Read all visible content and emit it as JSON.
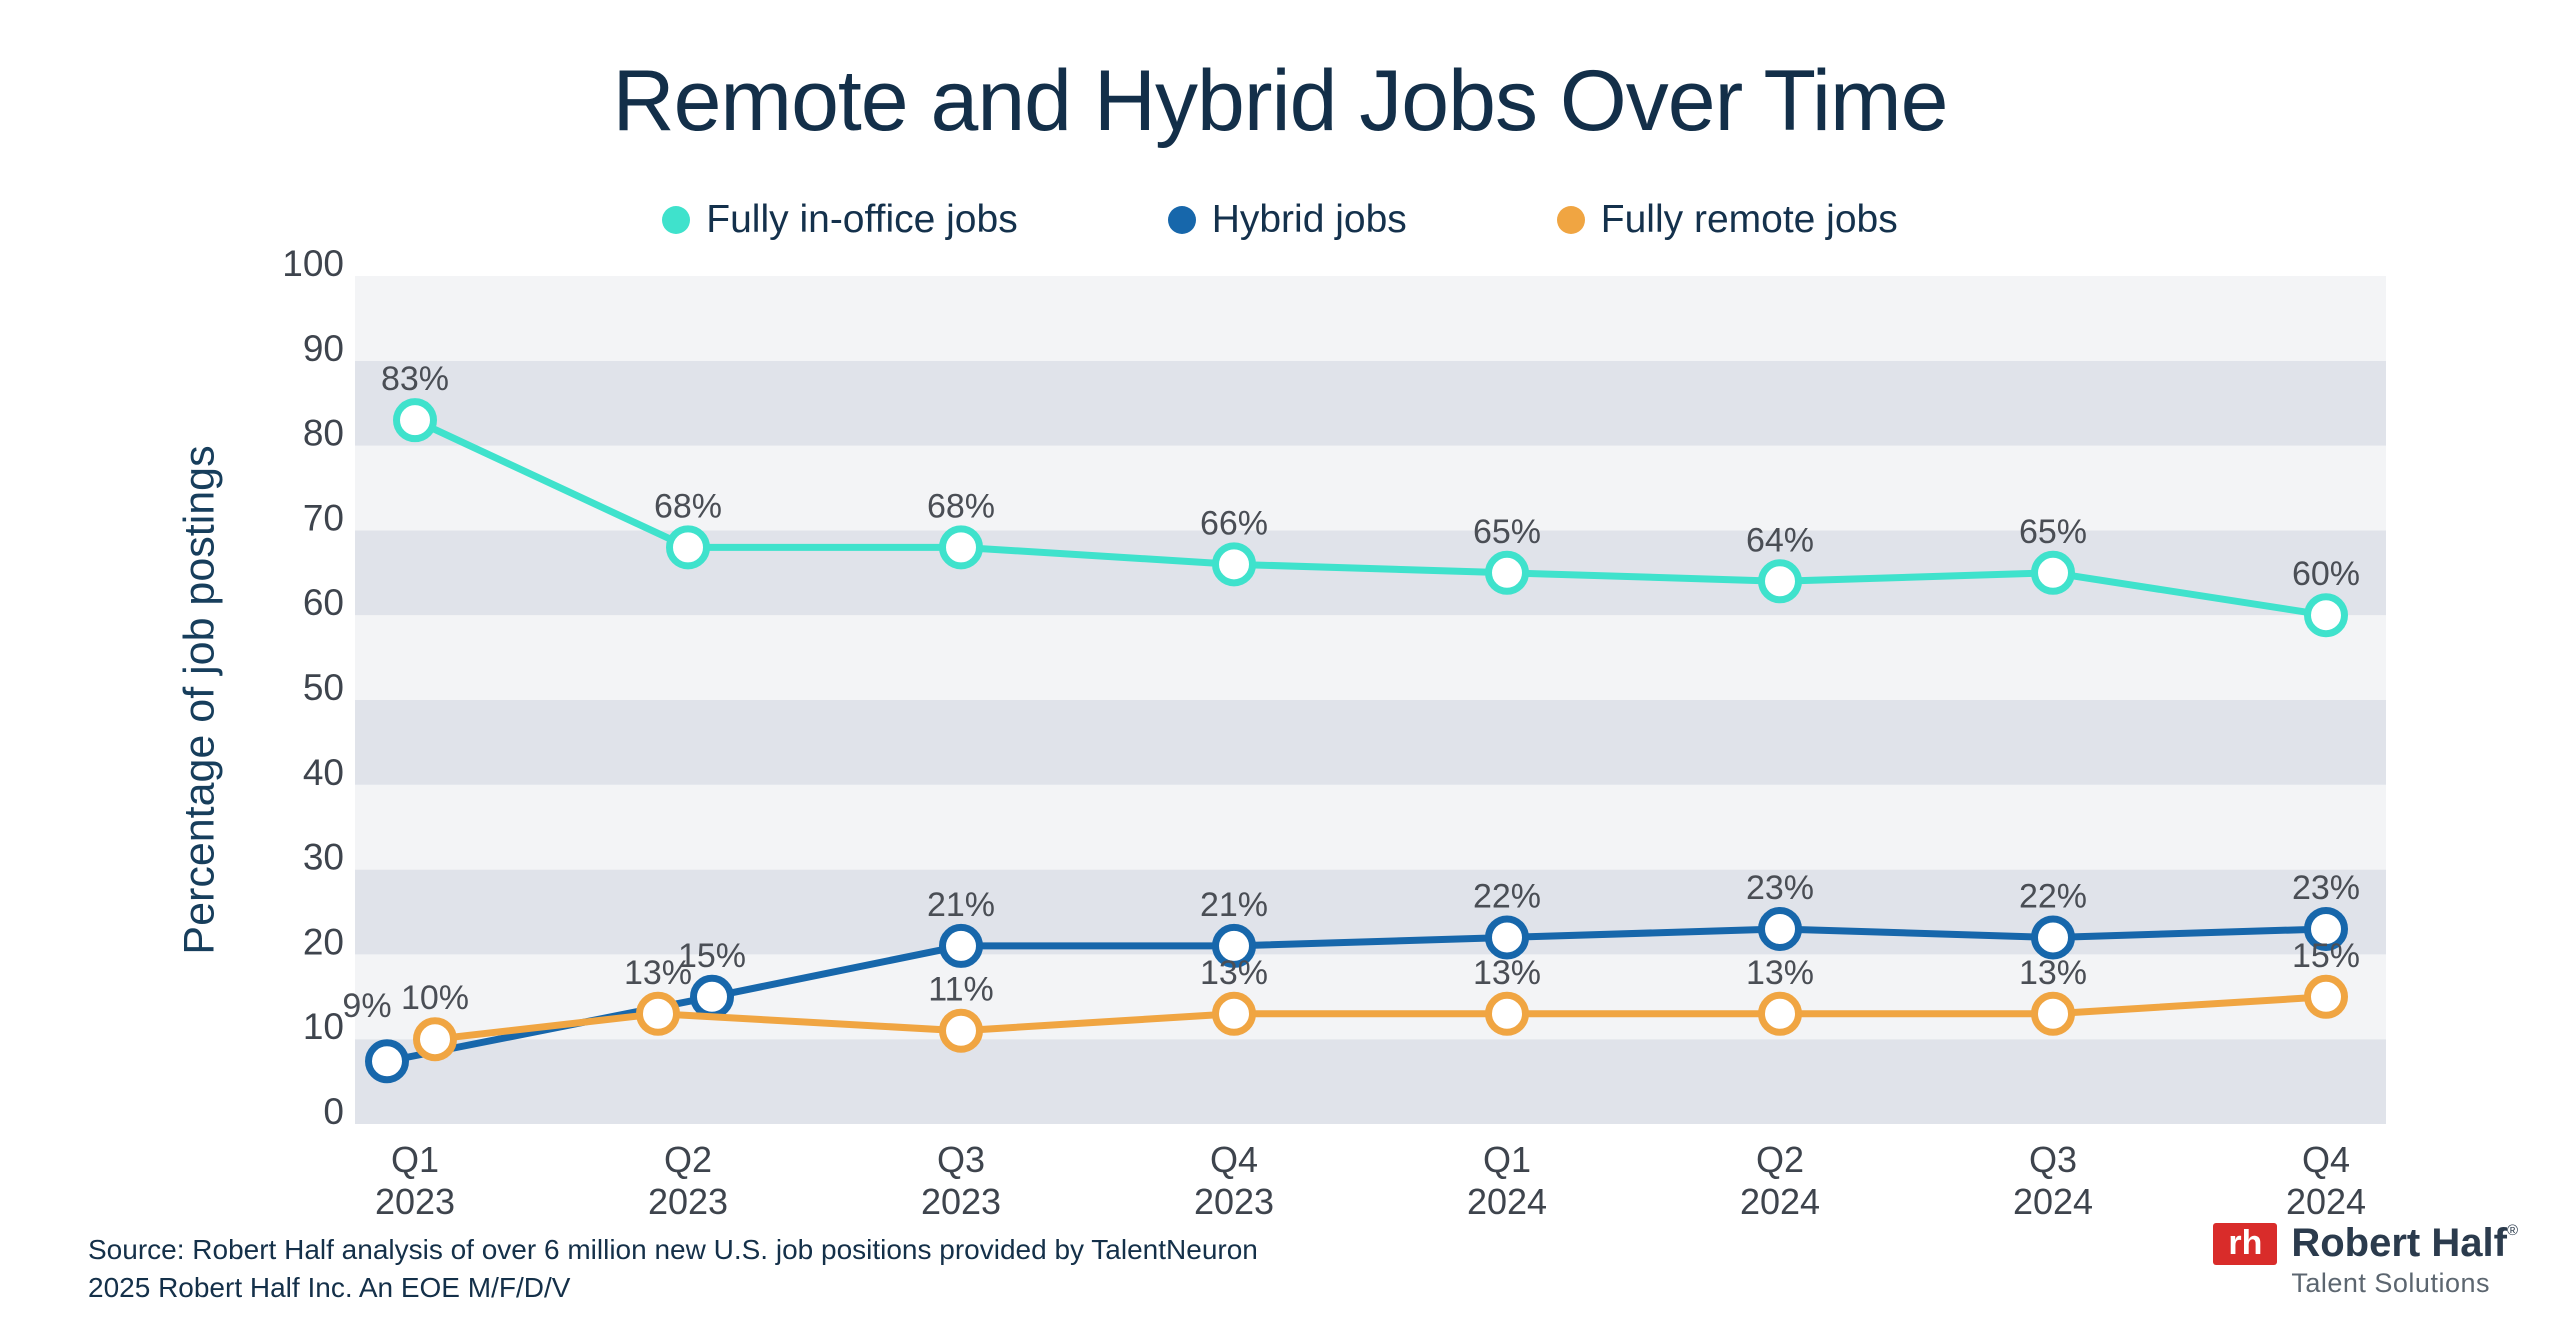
{
  "title": "Remote and Hybrid Jobs Over Time",
  "y_axis_title": "Percentage of job postings",
  "source": {
    "line1": "Source: Robert Half analysis of over 6 million new U.S. job positions provided by TalentNeuron",
    "line2": "2025 Robert Half Inc. An EOE M/F/D/V"
  },
  "logo": {
    "monogram": "rh",
    "brand": "Robert Half",
    "registered": "®",
    "tagline": "Talent Solutions",
    "red": "#D92C2A",
    "navy": "#2B3B4D",
    "gray": "#5C6670"
  },
  "colors": {
    "title_navy": "#132F49",
    "legend_navy": "#14314C",
    "axis_title_navy": "#173E5C",
    "tick_label": "#3E444D",
    "data_label": "#4A4E55",
    "band_light": "#F3F4F6",
    "band_dark": "#E0E3EA",
    "background": "#FFFFFF"
  },
  "chart_data": {
    "type": "line",
    "title": "Remote and Hybrid Jobs Over Time",
    "xlabel": "",
    "ylabel": "Percentage of job postings",
    "ylim": [
      0,
      100
    ],
    "ytick_step": 10,
    "y_ticks": [
      0,
      10,
      20,
      30,
      40,
      50,
      60,
      70,
      80,
      90,
      100
    ],
    "grid": "alternating horizontal bands every 10 units",
    "legend_position": "top",
    "labels_suffix": "%",
    "categories": [
      {
        "quarter": "Q1",
        "year": "2023"
      },
      {
        "quarter": "Q2",
        "year": "2023"
      },
      {
        "quarter": "Q3",
        "year": "2023"
      },
      {
        "quarter": "Q4",
        "year": "2023"
      },
      {
        "quarter": "Q1",
        "year": "2024"
      },
      {
        "quarter": "Q2",
        "year": "2024"
      },
      {
        "quarter": "Q3",
        "year": "2024"
      },
      {
        "quarter": "Q4",
        "year": "2024"
      }
    ],
    "series": [
      {
        "name": "Fully in-office jobs",
        "color": "#3FE2CC",
        "values": [
          83,
          68,
          68,
          66,
          65,
          64,
          65,
          60
        ]
      },
      {
        "name": "Hybrid jobs",
        "color": "#1767AB",
        "values": [
          9,
          15,
          21,
          21,
          22,
          23,
          22,
          23
        ]
      },
      {
        "name": "Fully remote jobs",
        "color": "#F0A542",
        "values": [
          10,
          13,
          11,
          13,
          13,
          13,
          13,
          15
        ]
      }
    ]
  }
}
